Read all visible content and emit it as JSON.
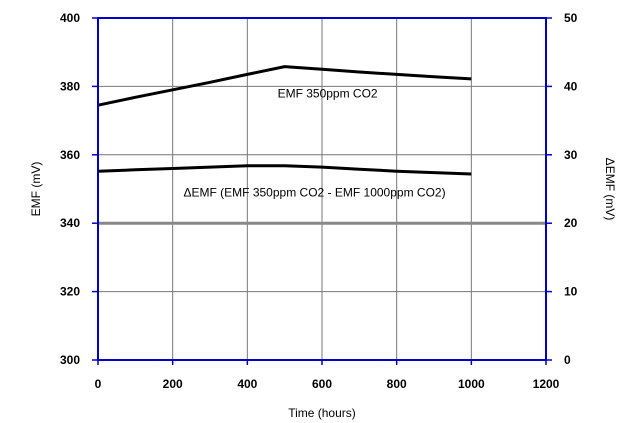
{
  "chart_data": {
    "type": "line",
    "title": "",
    "xlabel": "Time (hours)",
    "ylabel_left": "EMF (mV)",
    "ylabel_right": "ΔEMF (mV)",
    "xlim": [
      0,
      1200
    ],
    "ylim_left": [
      300,
      400
    ],
    "ylim_right": [
      0,
      50
    ],
    "x_ticks": [
      "0",
      "200",
      "400",
      "600",
      "800",
      "1000",
      "1200"
    ],
    "y_ticks_left": [
      "300",
      "320",
      "340",
      "360",
      "380",
      "400"
    ],
    "y_ticks_right": [
      "0",
      "10",
      "20",
      "30",
      "40",
      "50"
    ],
    "grid": true,
    "series": [
      {
        "axis": "left",
        "color": "#000000",
        "x": [
          0,
          100,
          200,
          300,
          400,
          500,
          600,
          700,
          800,
          900,
          1000
        ],
        "y": [
          374.5,
          376.8,
          379.0,
          381.2,
          383.5,
          385.8,
          385.0,
          384.2,
          383.5,
          382.8,
          382.2
        ]
      },
      {
        "axis": "right",
        "color": "#000000",
        "x": [
          0,
          100,
          200,
          300,
          400,
          500,
          600,
          700,
          800,
          900,
          1000
        ],
        "y": [
          27.6,
          27.8,
          28.0,
          28.2,
          28.4,
          28.4,
          28.2,
          27.9,
          27.6,
          27.4,
          27.2
        ]
      }
    ],
    "annotations": [
      {
        "text": "EMF 350ppm CO2",
        "x": 615,
        "y": 376.7
      },
      {
        "text": "ΔEMF (EMF 350ppm CO2 - EMF 1000ppm CO2)",
        "x": 580,
        "y": 347.8
      }
    ],
    "axis_color": "#0000cc",
    "reference_line": {
      "y": 340,
      "color": "#888888"
    }
  }
}
